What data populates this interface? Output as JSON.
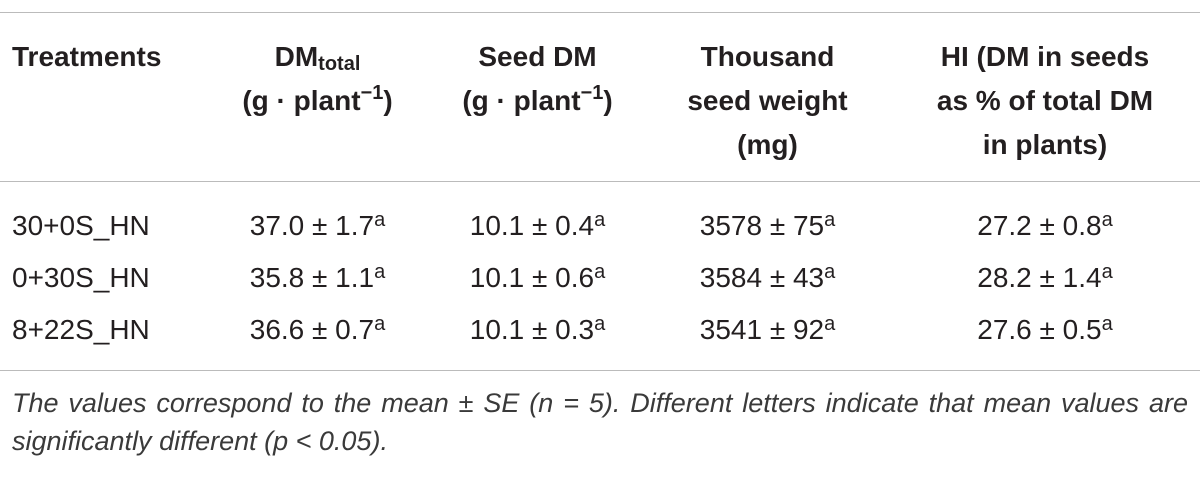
{
  "table": {
    "header": [
      [
        [
          {
            "text": "Treatments"
          }
        ]
      ],
      [
        [
          {
            "text": "DM"
          },
          {
            "text": "total",
            "style": "sub"
          }
        ],
        [
          {
            "text": "(g · plant"
          },
          {
            "text": "−1",
            "style": "sup"
          },
          {
            "text": ")"
          }
        ]
      ],
      [
        [
          {
            "text": "Seed DM"
          }
        ],
        [
          {
            "text": "(g · plant"
          },
          {
            "text": "−1",
            "style": "sup"
          },
          {
            "text": ")"
          }
        ]
      ],
      [
        [
          {
            "text": "Thousand"
          }
        ],
        [
          {
            "text": "seed weight"
          }
        ],
        [
          {
            "text": "(mg)"
          }
        ]
      ],
      [
        [
          {
            "text": "HI (DM in seeds"
          }
        ],
        [
          {
            "text": "as % of total DM"
          }
        ],
        [
          {
            "text": "in plants)"
          }
        ]
      ]
    ],
    "rows": [
      {
        "treatment": "30+0S_HN",
        "cells": [
          {
            "text": "37.0 ± 1.7",
            "sup": "a"
          },
          {
            "text": "10.1 ± 0.4",
            "sup": "a"
          },
          {
            "text": "3578 ± 75",
            "sup": "a"
          },
          {
            "text": "27.2 ± 0.8",
            "sup": "a"
          }
        ]
      },
      {
        "treatment": "0+30S_HN",
        "cells": [
          {
            "text": "35.8 ± 1.1",
            "sup": "a"
          },
          {
            "text": "10.1 ± 0.6",
            "sup": "a"
          },
          {
            "text": "3584 ± 43",
            "sup": "a"
          },
          {
            "text": "28.2 ± 1.4",
            "sup": "a"
          }
        ]
      },
      {
        "treatment": "8+22S_HN",
        "cells": [
          {
            "text": "36.6 ± 0.7",
            "sup": "a"
          },
          {
            "text": "10.1 ± 0.3",
            "sup": "a"
          },
          {
            "text": "3541 ± 92",
            "sup": "a"
          },
          {
            "text": "27.6 ± 0.5",
            "sup": "a"
          }
        ]
      }
    ],
    "footnote": "The values correspond to the mean ± SE (n = 5). Different letters indicate that mean values are significantly different (p < 0.05)."
  }
}
